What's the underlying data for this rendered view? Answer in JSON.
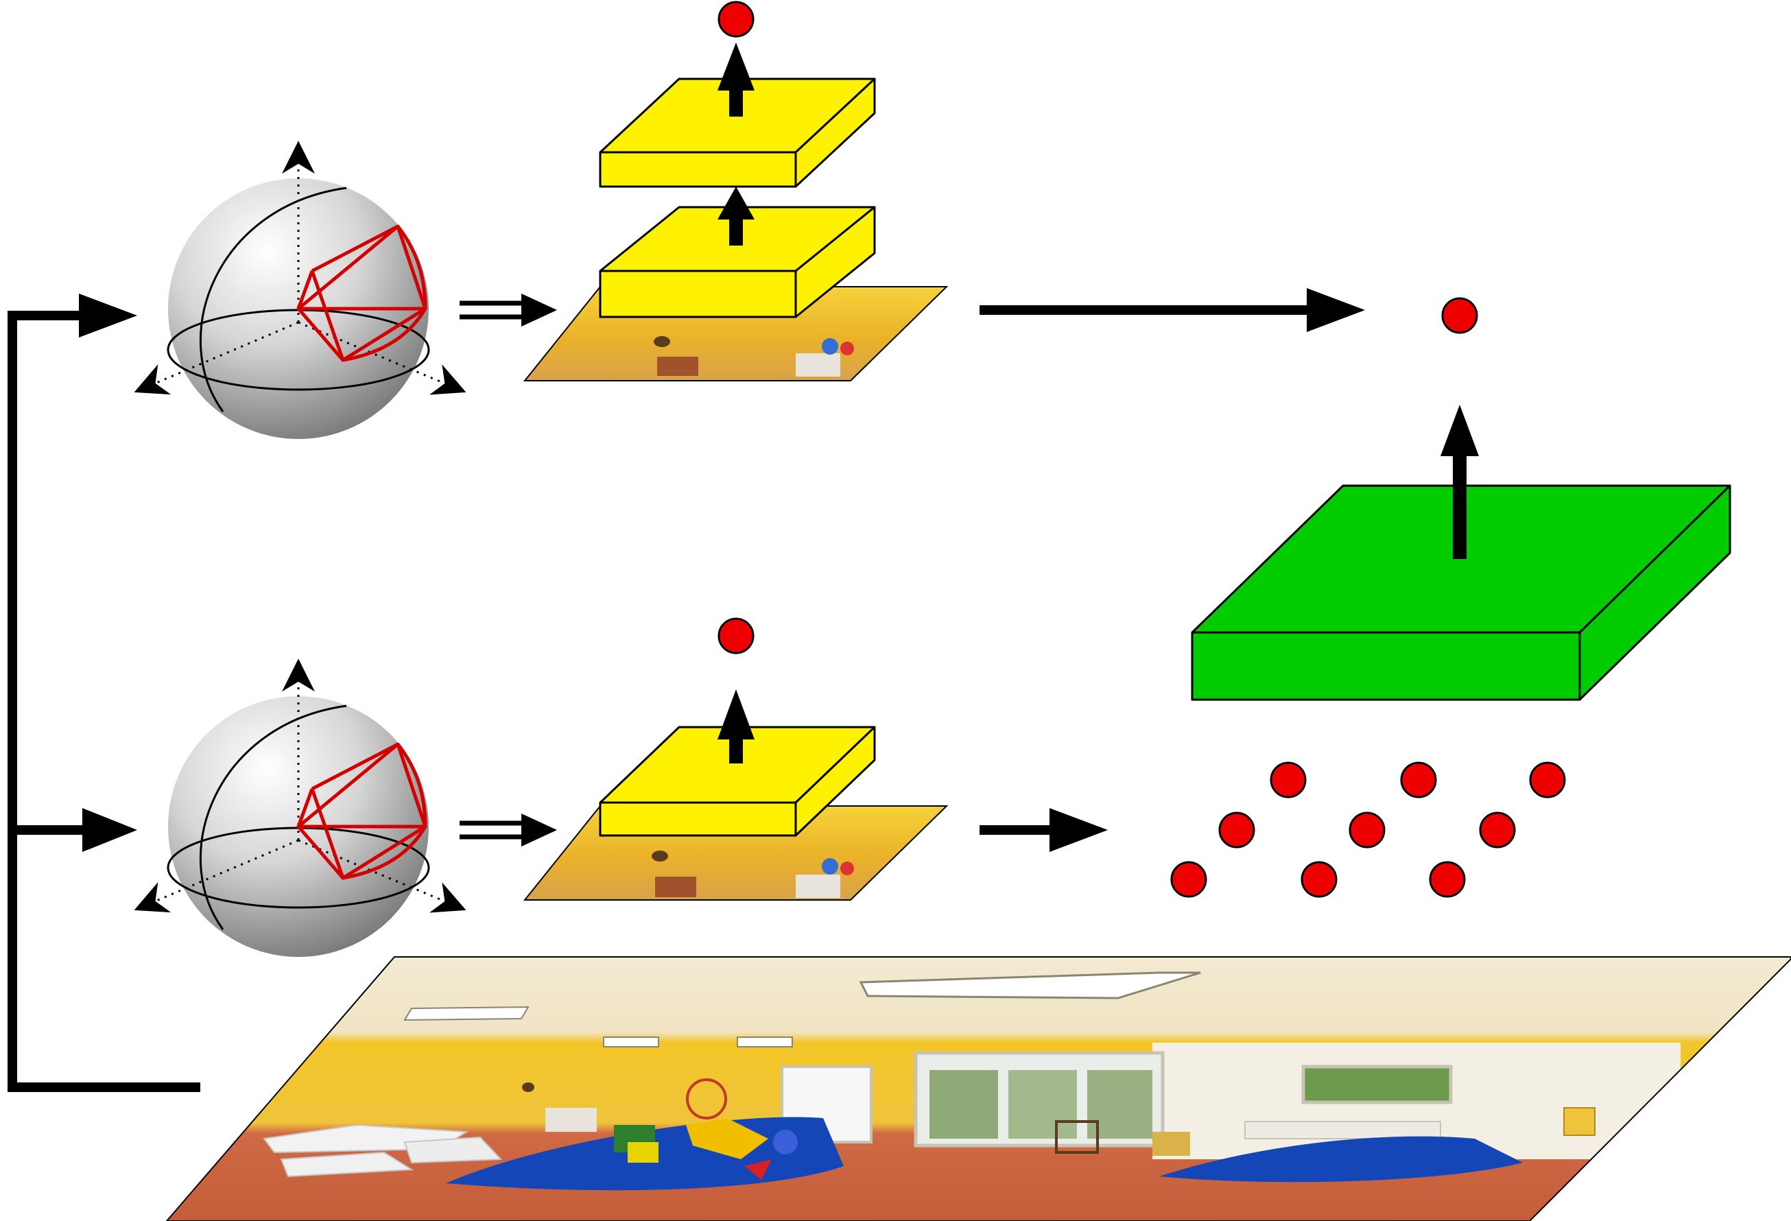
{
  "diagram": {
    "colors": {
      "line": "#000000",
      "feature_block": "#ffee00",
      "fusion_block": "#00cc00",
      "node": "#ee0000",
      "camera_frustum": "#d40000",
      "sphere_light": "#f2f2f2",
      "sphere_dark": "#7a7a7a",
      "wall_yellow": "#f1c21c",
      "ceiling": "#efe6cf",
      "floor": "#c9643f",
      "rug": "#1546b8"
    },
    "icons": {
      "viewpoint_sphere": "sphere-with-camera-frustum-icon",
      "image_patch": "perspective-image-patch-icon",
      "panorama": "equirectangular-panorama-icon",
      "feature_layer": "conv-layer-block-icon",
      "output_node": "red-node-icon"
    },
    "branches": [
      {
        "id": "top",
        "layers": 2,
        "output": "single-node"
      },
      {
        "id": "bottom",
        "layers": 1,
        "output": "node-grid"
      }
    ],
    "node_grid": {
      "rows": 3,
      "cols": 3
    },
    "fusion": {
      "layers": 1,
      "output": "single-node"
    }
  }
}
